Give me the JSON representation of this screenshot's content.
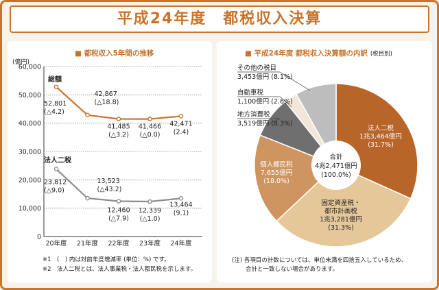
{
  "title": "平成24年度　都税収入決算",
  "left": {
    "heading": "■ 都税収入5年間の推移",
    "notes": [
      "※1　(　) 内は対前年度増減率 (単位：%) です。",
      "※2　法人二税とは、法人事業税・法人都民税を示します。"
    ]
  },
  "right": {
    "heading": "■ 平成24年度 都税収入決算額の内訳",
    "heading_sub": "(税目別)",
    "notes": [
      "(注) 各項目の計数については、単位未満を四捨五入しているため、",
      "合計と一致しない場合があります。"
    ]
  },
  "chart_data": [
    {
      "type": "line",
      "ylabel": "(億円)",
      "categories": [
        "20年度",
        "21年度",
        "22年度",
        "23年度",
        "24年度"
      ],
      "ylim": [
        0,
        60000
      ],
      "yticks": [
        0,
        10000,
        20000,
        30000,
        40000,
        50000,
        60000
      ],
      "ytick_labels": [
        "0",
        "10,000",
        "20,000",
        "30,000",
        "40,000",
        "50,000",
        "60,000"
      ],
      "series": [
        {
          "name": "総額",
          "color": "#c8742c",
          "values": [
            52801,
            42867,
            41485,
            41466,
            42471
          ],
          "value_labels": [
            "52,801",
            "42,867",
            "41,485",
            "41,466",
            "42,471"
          ],
          "rate_labels": [
            "(△4.2)",
            "(△18.8)",
            "(△3.2)",
            "(△0.0)",
            "(2.4)"
          ]
        },
        {
          "name": "法人二税",
          "color": "#8c8c8c",
          "values": [
            23812,
            13523,
            12460,
            12339,
            13464
          ],
          "value_labels": [
            "23,812",
            "13,523",
            "12,460",
            "12,339",
            "13,464"
          ],
          "rate_labels": [
            "(△9.0)",
            "(△43.2)",
            "(△7.9)",
            "(△1.0)",
            "(9.1)"
          ]
        }
      ]
    },
    {
      "type": "pie",
      "center_label": [
        "合計",
        "4兆2,471億円",
        "(100.0%)"
      ],
      "slices": [
        {
          "name": "法人二税",
          "amount": "1兆3,464億円",
          "percent": "(31.7%)",
          "value": 31.7,
          "color": "#b8652a"
        },
        {
          "name": "固定資産税・都市計画税",
          "amount": "1兆3,281億円",
          "percent": "(31.3%)",
          "value": 31.3,
          "color": "#e6c79a"
        },
        {
          "name": "個人都民税",
          "amount": "7,655億円",
          "percent": "(18.0%)",
          "value": 18.0,
          "color": "#cf9560"
        },
        {
          "name": "地方消費税",
          "amount": "3,519億円",
          "percent": "(8.3%)",
          "value": 8.3,
          "color": "#6f6f6f"
        },
        {
          "name": "自動車税",
          "amount": "1,100億円",
          "percent": "(2.6%)",
          "value": 2.6,
          "color": "#f1e6d8"
        },
        {
          "name": "その他の税目",
          "amount": "3,453億円",
          "percent": "(8.1%)",
          "value": 8.1,
          "color": "#bdbdbd"
        }
      ]
    }
  ]
}
